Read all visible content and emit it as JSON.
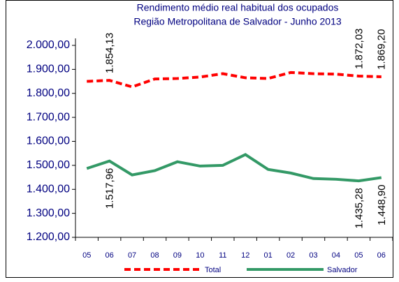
{
  "chart_data": {
    "type": "line",
    "title": [
      "Rendimento médio real habitual dos ocupados",
      "Região Metropolitana de Salvador - Junho 2013"
    ],
    "categories": [
      "05",
      "06",
      "07",
      "08",
      "09",
      "10",
      "11",
      "12",
      "01",
      "02",
      "03",
      "04",
      "05",
      "06"
    ],
    "series": [
      {
        "name": "Total",
        "color": "#ff0000",
        "dashed": true,
        "values": [
          1850,
          1854.13,
          1827,
          1860,
          1862,
          1868,
          1882,
          1865,
          1862,
          1887,
          1882,
          1880,
          1872.03,
          1869.2
        ],
        "value_labels": [
          null,
          "1.854,13",
          null,
          null,
          null,
          null,
          null,
          null,
          null,
          null,
          null,
          null,
          "1.872,03",
          "1.869,20"
        ]
      },
      {
        "name": "Salvador",
        "color": "#339966",
        "dashed": false,
        "values": [
          1487,
          1517.96,
          1460,
          1478,
          1515,
          1497,
          1500,
          1545,
          1483,
          1468,
          1445,
          1442,
          1435.28,
          1448.9
        ],
        "value_labels": [
          null,
          "1.517,96",
          null,
          null,
          null,
          null,
          null,
          null,
          null,
          null,
          null,
          null,
          "1.435,28",
          "1.448,90"
        ]
      }
    ],
    "ylim": [
      1200,
      2000
    ],
    "yticks": [
      {
        "value": 1200,
        "label": "1.200,00"
      },
      {
        "value": 1300,
        "label": "1.300,00"
      },
      {
        "value": 1400,
        "label": "1.400,00"
      },
      {
        "value": 1500,
        "label": "1.500,00"
      },
      {
        "value": 1600,
        "label": "1.600,00"
      },
      {
        "value": 1700,
        "label": "1.700,00"
      },
      {
        "value": 1800,
        "label": "1.800,00"
      },
      {
        "value": 1900,
        "label": "1.900,00"
      },
      {
        "value": 2000,
        "label": "2.000,00"
      }
    ]
  }
}
